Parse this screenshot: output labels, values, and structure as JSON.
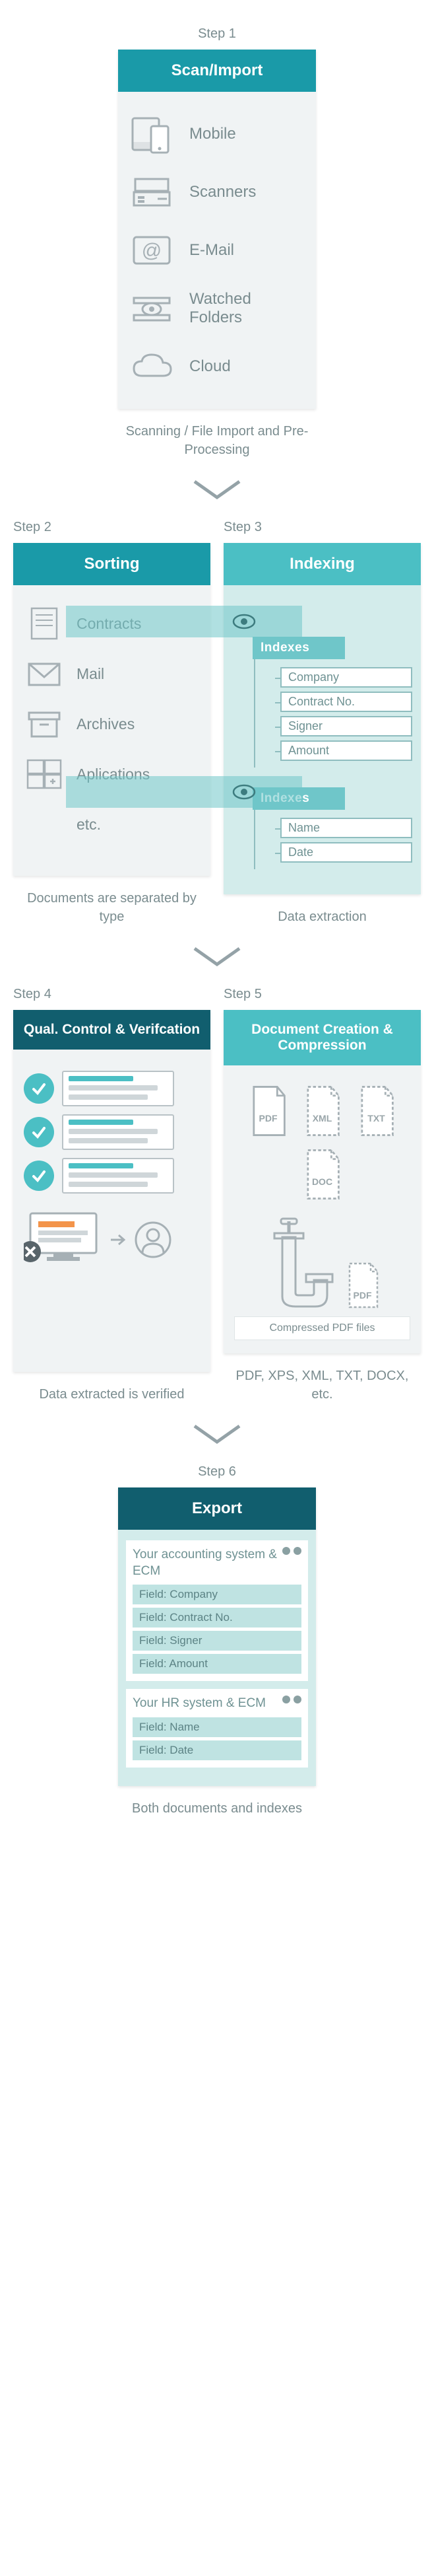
{
  "colors": {
    "teal_dark": "#115e6e",
    "teal_mid": "#1a9aa8",
    "teal_light": "#4bbfc4",
    "panel_grey": "#f0f3f4",
    "panel_mint": "#d3eceb",
    "text_muted": "#7a8c8f",
    "stroke_grey": "#a6b0b5",
    "orange": "#f3944a",
    "field_mint": "#bfe3e2"
  },
  "arrow": {
    "stroke": "#94a2a7"
  },
  "step1": {
    "label": "Step 1",
    "title": "Scan/Import",
    "items": [
      {
        "name": "mobile",
        "label": "Mobile"
      },
      {
        "name": "scanners",
        "label": "Scanners"
      },
      {
        "name": "email",
        "label": "E-Mail"
      },
      {
        "name": "watched",
        "label": "Watched Folders",
        "multiline": true
      },
      {
        "name": "cloud",
        "label": "Cloud"
      }
    ],
    "caption": "Scanning / File Import and Pre-Processing"
  },
  "step2": {
    "label": "Step 2",
    "title": "Sorting",
    "items": [
      {
        "name": "contracts",
        "label": "Contracts"
      },
      {
        "name": "mail",
        "label": "Mail"
      },
      {
        "name": "archives",
        "label": "Archives"
      },
      {
        "name": "applications",
        "label": "Aplications"
      },
      {
        "name": "etc",
        "label": "etc."
      }
    ],
    "caption": "Documents are separated by type"
  },
  "step3": {
    "label": "Step 3",
    "title": "Indexing",
    "groups": [
      {
        "title": "Indexes",
        "fields": [
          "Company",
          "Contract No.",
          "Signer",
          "Amount"
        ]
      },
      {
        "title": "Indexes",
        "fields": [
          "Name",
          "Date"
        ]
      }
    ],
    "caption": "Data extraction"
  },
  "step4": {
    "label": "Step 4",
    "title": "Qual. Control & Verifcation",
    "checks": [
      {
        "ok": true,
        "line1": "#4bbfc4",
        "line2": "#cfd6d9"
      },
      {
        "ok": true,
        "line1": "#4bbfc4",
        "line2": "#cfd6d9"
      },
      {
        "ok": true,
        "line1": "#4bbfc4",
        "line2": "#cfd6d9"
      }
    ],
    "reject": {
      "line1": "#f3944a",
      "line2": "#cfd6d9"
    },
    "caption": "Data extracted is verified"
  },
  "step5": {
    "label": "Step 5",
    "title": "Document Creation & Compression",
    "files": [
      "PDF",
      "XML",
      "TXT",
      "DOC"
    ],
    "compressed_label": "PDF",
    "footer": "Compressed PDF files",
    "caption": "PDF, XPS, XML, TXT, DOCX, etc."
  },
  "step6": {
    "label": "Step 6",
    "title": "Export",
    "boxes": [
      {
        "title": "Your accounting system & ECM",
        "fields": [
          "Field: Company",
          "Field: Contract No.",
          "Field: Signer",
          "Field: Amount"
        ]
      },
      {
        "title": "Your HR system & ECM",
        "fields": [
          "Field: Name",
          "Field: Date"
        ]
      }
    ],
    "caption": "Both documents and indexes"
  }
}
